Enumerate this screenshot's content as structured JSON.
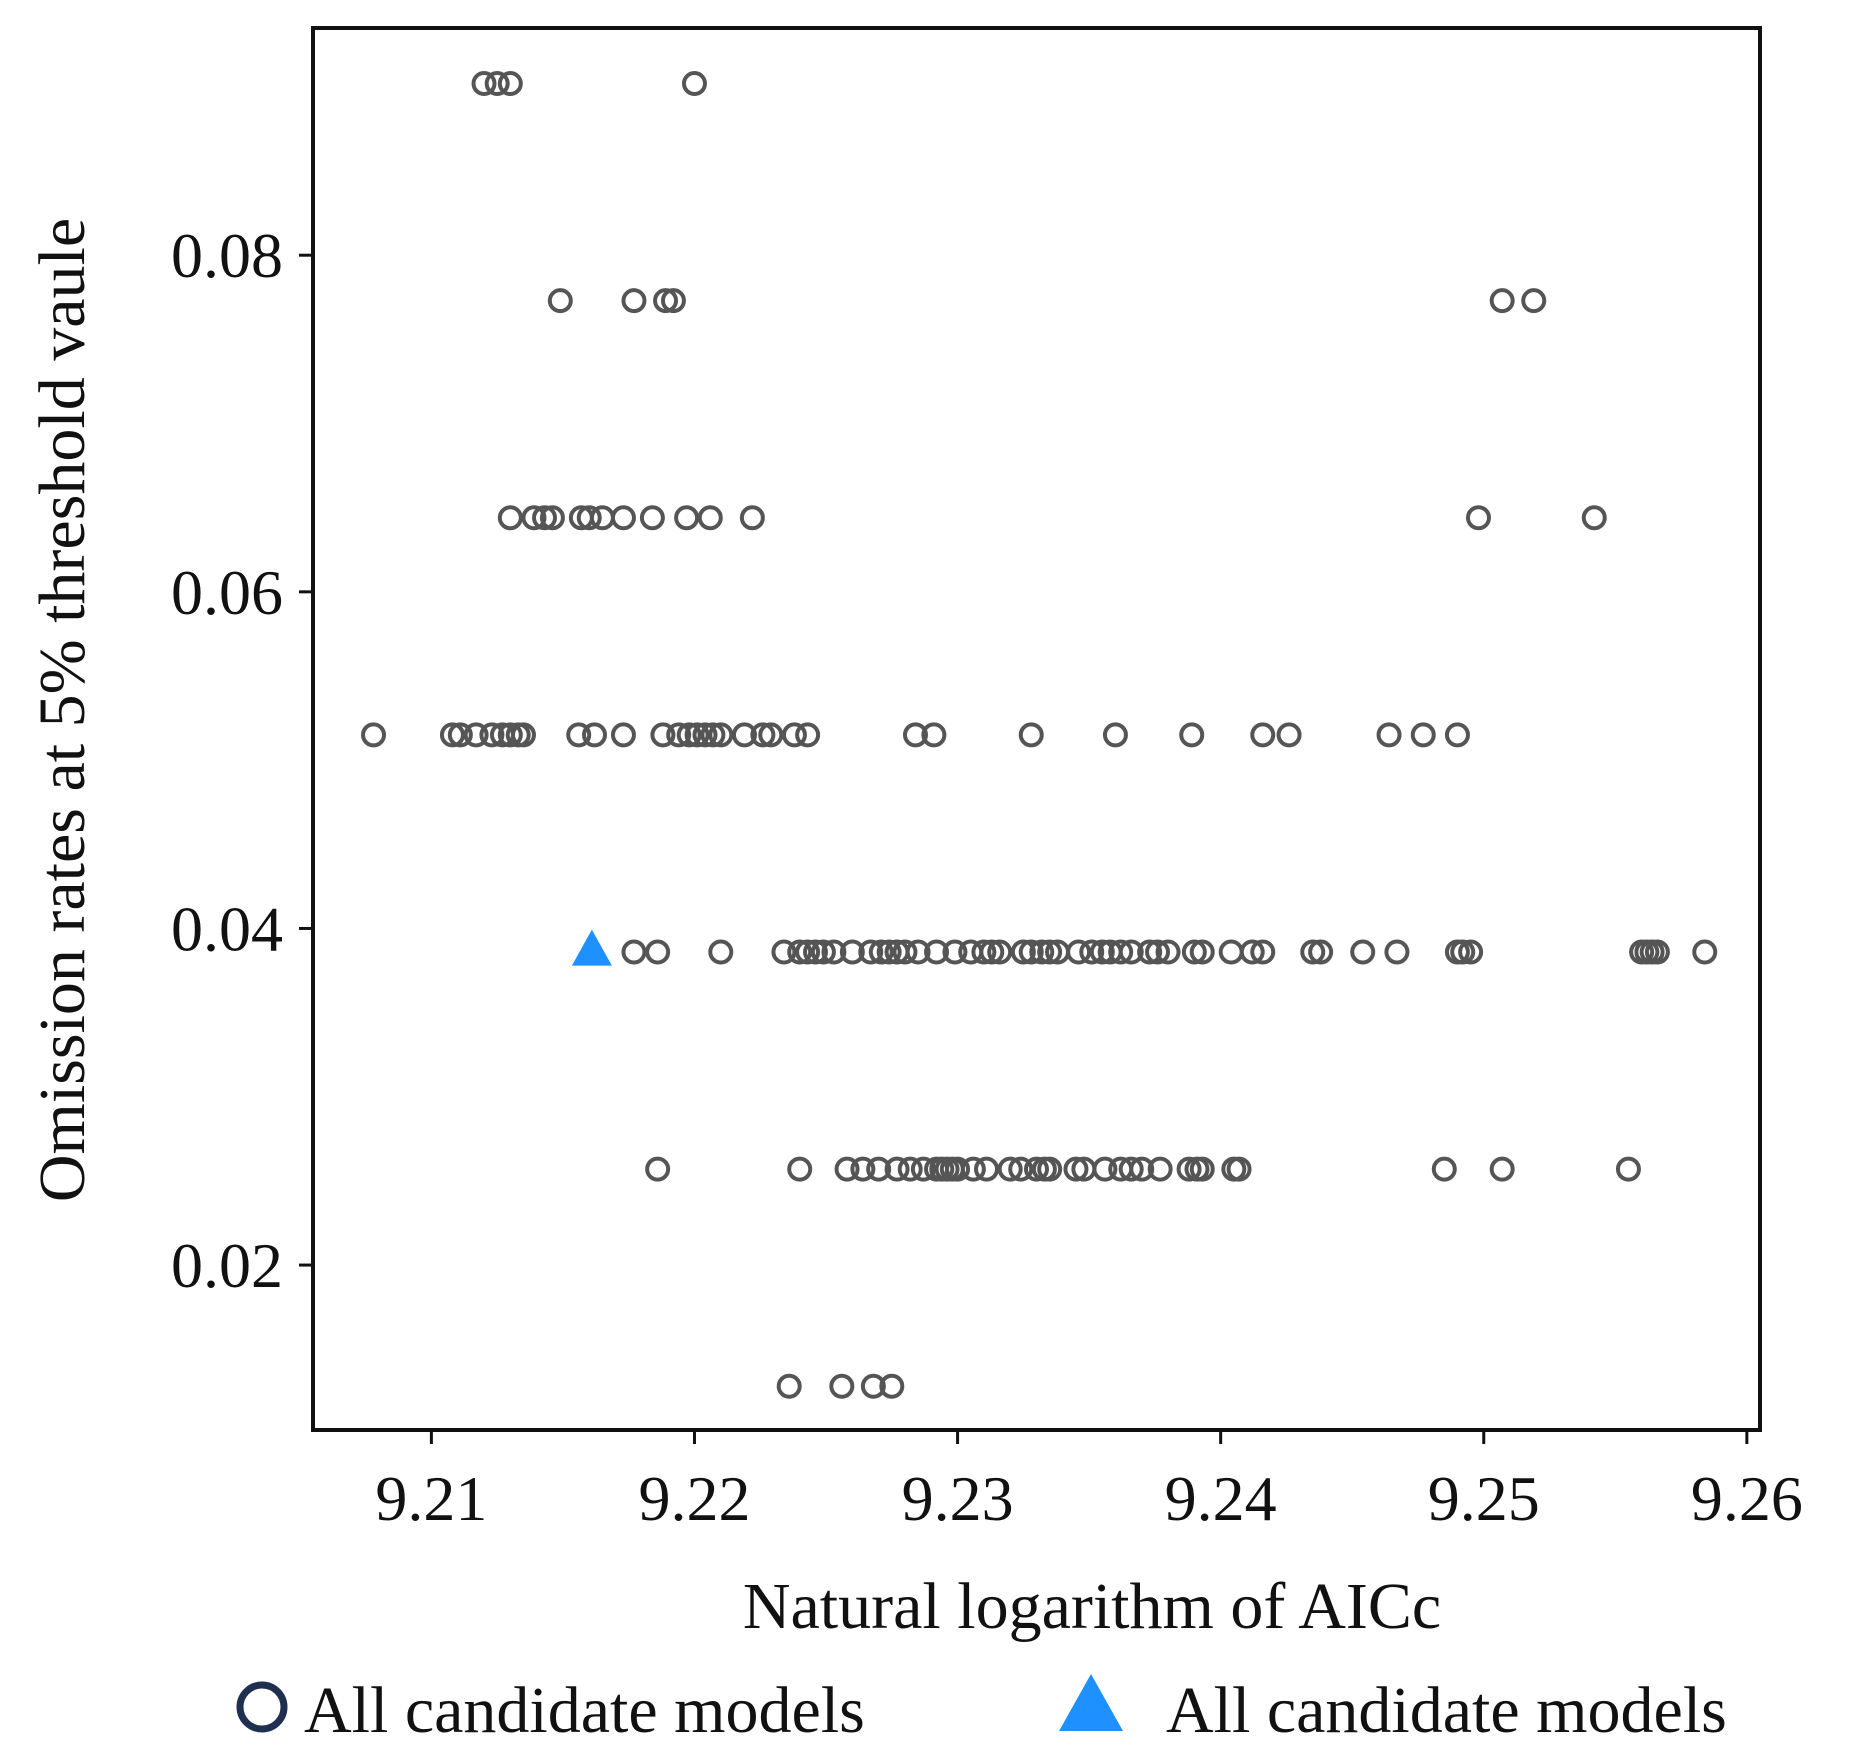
{
  "chart_data": {
    "type": "scatter",
    "title": "",
    "xlabel": "Natural logarithm of AICc",
    "ylabel": "Omission rates at 5% threshold vaule",
    "xlim": [
      9.2055,
      9.2605
    ],
    "ylim": [
      0.0102,
      0.0935
    ],
    "xticks": [
      9.21,
      9.22,
      9.23,
      9.24,
      9.25,
      9.26
    ],
    "xtick_labels": [
      "9.21",
      "9.22",
      "9.23",
      "9.24",
      "9.25",
      "9.26"
    ],
    "yticks": [
      0.02,
      0.04,
      0.06,
      0.08
    ],
    "ytick_labels": [
      "0.02",
      "0.04",
      "0.06",
      "0.08"
    ],
    "grid": false,
    "legend_position": "bottom",
    "series": [
      {
        "name": "All candidate models",
        "marker": "circle",
        "color": "#555555",
        "legend_color": "#1f2f4f",
        "points": [
          [
            9.212,
            0.0902
          ],
          [
            9.2125,
            0.0902
          ],
          [
            9.213,
            0.0902
          ],
          [
            9.22,
            0.0902
          ],
          [
            9.2149,
            0.0773
          ],
          [
            9.2177,
            0.0773
          ],
          [
            9.2189,
            0.0773
          ],
          [
            9.2192,
            0.0773
          ],
          [
            9.2507,
            0.0773
          ],
          [
            9.2519,
            0.0773
          ],
          [
            9.213,
            0.0644
          ],
          [
            9.2139,
            0.0644
          ],
          [
            9.2143,
            0.0644
          ],
          [
            9.2146,
            0.0644
          ],
          [
            9.2157,
            0.0644
          ],
          [
            9.216,
            0.0644
          ],
          [
            9.2165,
            0.0644
          ],
          [
            9.2173,
            0.0644
          ],
          [
            9.2184,
            0.0644
          ],
          [
            9.2197,
            0.0644
          ],
          [
            9.2206,
            0.0644
          ],
          [
            9.2222,
            0.0644
          ],
          [
            9.2498,
            0.0644
          ],
          [
            9.2542,
            0.0644
          ],
          [
            9.2078,
            0.0515
          ],
          [
            9.2108,
            0.0515
          ],
          [
            9.2111,
            0.0515
          ],
          [
            9.2117,
            0.0515
          ],
          [
            9.2123,
            0.0515
          ],
          [
            9.2127,
            0.0515
          ],
          [
            9.213,
            0.0515
          ],
          [
            9.2133,
            0.0515
          ],
          [
            9.2135,
            0.0515
          ],
          [
            9.2156,
            0.0515
          ],
          [
            9.2162,
            0.0515
          ],
          [
            9.2173,
            0.0515
          ],
          [
            9.2188,
            0.0515
          ],
          [
            9.2194,
            0.0515
          ],
          [
            9.2198,
            0.0515
          ],
          [
            9.2201,
            0.0515
          ],
          [
            9.2204,
            0.0515
          ],
          [
            9.2207,
            0.0515
          ],
          [
            9.221,
            0.0515
          ],
          [
            9.2219,
            0.0515
          ],
          [
            9.2226,
            0.0515
          ],
          [
            9.2229,
            0.0515
          ],
          [
            9.2238,
            0.0515
          ],
          [
            9.2243,
            0.0515
          ],
          [
            9.2284,
            0.0515
          ],
          [
            9.2291,
            0.0515
          ],
          [
            9.2328,
            0.0515
          ],
          [
            9.236,
            0.0515
          ],
          [
            9.2389,
            0.0515
          ],
          [
            9.2416,
            0.0515
          ],
          [
            9.2426,
            0.0515
          ],
          [
            9.2464,
            0.0515
          ],
          [
            9.2477,
            0.0515
          ],
          [
            9.249,
            0.0515
          ],
          [
            9.2177,
            0.0386
          ],
          [
            9.2186,
            0.0386
          ],
          [
            9.221,
            0.0386
          ],
          [
            9.2234,
            0.0386
          ],
          [
            9.224,
            0.0386
          ],
          [
            9.2243,
            0.0386
          ],
          [
            9.2246,
            0.0386
          ],
          [
            9.2249,
            0.0386
          ],
          [
            9.2253,
            0.0386
          ],
          [
            9.226,
            0.0386
          ],
          [
            9.2267,
            0.0386
          ],
          [
            9.2271,
            0.0386
          ],
          [
            9.2274,
            0.0386
          ],
          [
            9.2277,
            0.0386
          ],
          [
            9.228,
            0.0386
          ],
          [
            9.2285,
            0.0386
          ],
          [
            9.2292,
            0.0386
          ],
          [
            9.2299,
            0.0386
          ],
          [
            9.2305,
            0.0386
          ],
          [
            9.231,
            0.0386
          ],
          [
            9.2313,
            0.0386
          ],
          [
            9.2316,
            0.0386
          ],
          [
            9.2325,
            0.0386
          ],
          [
            9.2328,
            0.0386
          ],
          [
            9.2332,
            0.0386
          ],
          [
            9.2335,
            0.0386
          ],
          [
            9.2338,
            0.0386
          ],
          [
            9.2346,
            0.0386
          ],
          [
            9.2351,
            0.0386
          ],
          [
            9.2355,
            0.0386
          ],
          [
            9.2358,
            0.0386
          ],
          [
            9.2362,
            0.0386
          ],
          [
            9.2366,
            0.0386
          ],
          [
            9.2373,
            0.0386
          ],
          [
            9.2376,
            0.0386
          ],
          [
            9.238,
            0.0386
          ],
          [
            9.239,
            0.0386
          ],
          [
            9.2393,
            0.0386
          ],
          [
            9.2404,
            0.0386
          ],
          [
            9.2412,
            0.0386
          ],
          [
            9.2416,
            0.0386
          ],
          [
            9.2435,
            0.0386
          ],
          [
            9.2438,
            0.0386
          ],
          [
            9.2454,
            0.0386
          ],
          [
            9.2467,
            0.0386
          ],
          [
            9.249,
            0.0386
          ],
          [
            9.2492,
            0.0386
          ],
          [
            9.2495,
            0.0386
          ],
          [
            9.256,
            0.0386
          ],
          [
            9.2562,
            0.0386
          ],
          [
            9.2564,
            0.0386
          ],
          [
            9.2566,
            0.0386
          ],
          [
            9.2584,
            0.0386
          ],
          [
            9.2186,
            0.0257
          ],
          [
            9.224,
            0.0257
          ],
          [
            9.2258,
            0.0257
          ],
          [
            9.2264,
            0.0257
          ],
          [
            9.227,
            0.0257
          ],
          [
            9.2277,
            0.0257
          ],
          [
            9.2282,
            0.0257
          ],
          [
            9.2287,
            0.0257
          ],
          [
            9.2292,
            0.0257
          ],
          [
            9.2294,
            0.0257
          ],
          [
            9.2296,
            0.0257
          ],
          [
            9.2298,
            0.0257
          ],
          [
            9.23,
            0.0257
          ],
          [
            9.2306,
            0.0257
          ],
          [
            9.2311,
            0.0257
          ],
          [
            9.232,
            0.0257
          ],
          [
            9.2324,
            0.0257
          ],
          [
            9.233,
            0.0257
          ],
          [
            9.2333,
            0.0257
          ],
          [
            9.2335,
            0.0257
          ],
          [
            9.2345,
            0.0257
          ],
          [
            9.2348,
            0.0257
          ],
          [
            9.2356,
            0.0257
          ],
          [
            9.2362,
            0.0257
          ],
          [
            9.2366,
            0.0257
          ],
          [
            9.237,
            0.0257
          ],
          [
            9.2377,
            0.0257
          ],
          [
            9.2388,
            0.0257
          ],
          [
            9.2391,
            0.0257
          ],
          [
            9.2393,
            0.0257
          ],
          [
            9.2405,
            0.0257
          ],
          [
            9.2407,
            0.0257
          ],
          [
            9.2485,
            0.0257
          ],
          [
            9.2507,
            0.0257
          ],
          [
            9.2555,
            0.0257
          ],
          [
            9.2236,
            0.0128
          ],
          [
            9.2256,
            0.0128
          ],
          [
            9.2268,
            0.0128
          ],
          [
            9.2275,
            0.0128
          ]
        ]
      },
      {
        "name": "All candidate models",
        "marker": "triangle",
        "color": "#1e90ff",
        "legend_color": "#1e90ff",
        "points": [
          [
            9.2161,
            0.0386
          ]
        ]
      }
    ]
  }
}
